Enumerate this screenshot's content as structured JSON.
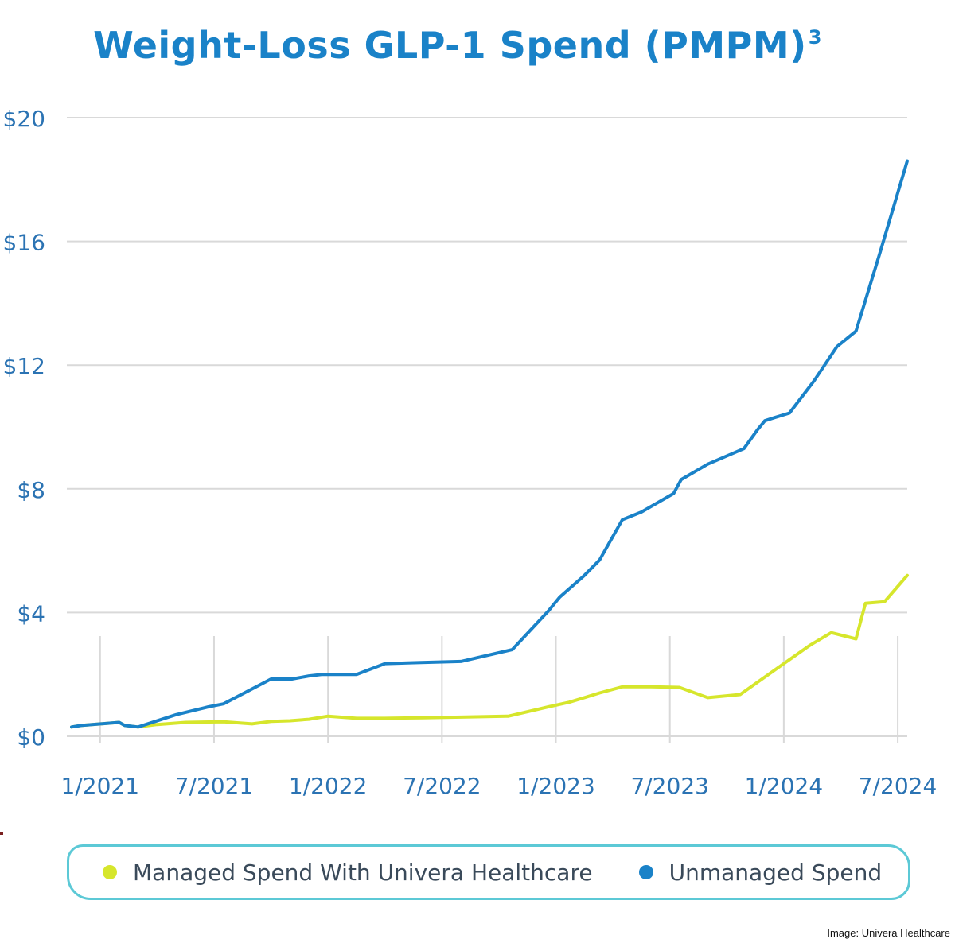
{
  "title": {
    "text": "Weight-Loss GLP-1 Spend (PMPM)",
    "superscript": "3"
  },
  "credit": "Image: Univera Healthcare",
  "colors": {
    "title": "#1a82c8",
    "unmanaged": "#1a82c8",
    "managed": "#d6e62c",
    "grid": "#d9d9d9",
    "tick": "#2b73b3",
    "legend_border": "#5cc9d6"
  },
  "legend": {
    "managed_label": "Managed Spend With Univera Healthcare",
    "unmanaged_label": "Unmanaged Spend"
  },
  "chart_data": {
    "type": "line",
    "title": "Weight-Loss GLP-1 Spend (PMPM)",
    "xlabel": "",
    "ylabel": "",
    "xlim": [
      -0.5,
      43.5
    ],
    "ylim": [
      0,
      20
    ],
    "y_ticks": [
      0,
      4,
      8,
      12,
      16,
      20
    ],
    "y_tick_labels": [
      "$0",
      "$4",
      "$8",
      "$12",
      "$16",
      "$20"
    ],
    "x_ticks": [
      1,
      7,
      13,
      19,
      25,
      31,
      37,
      43
    ],
    "x_tick_labels": [
      "1/2021",
      "7/2021",
      "1/2022",
      "7/2022",
      "1/2023",
      "7/2023",
      "1/2024",
      "7/2024"
    ],
    "grid": true,
    "legend_position": "bottom",
    "series": [
      {
        "name": "Unmanaged Spend",
        "x": [
          -0.5,
          0,
          2,
          2.3,
          3,
          5,
          6.7,
          7.5,
          10,
          11.1,
          12,
          12.7,
          14.5,
          16,
          17.7,
          20,
          22.7,
          24.6,
          25.2,
          26.5,
          27.3,
          28.5,
          29.5,
          31.2,
          31.6,
          33,
          34.9,
          35.6,
          36,
          36.5,
          37.3,
          38.6,
          39.8,
          40.8,
          42,
          43.5
        ],
        "values": [
          0.3,
          0.35,
          0.45,
          0.35,
          0.3,
          0.7,
          0.95,
          1.05,
          1.85,
          1.85,
          1.95,
          2.0,
          2.0,
          2.35,
          2.38,
          2.42,
          2.8,
          4.05,
          4.5,
          5.2,
          5.7,
          7.0,
          7.25,
          7.85,
          8.3,
          8.8,
          9.3,
          9.9,
          10.2,
          10.3,
          10.45,
          11.5,
          12.6,
          13.1,
          15.5,
          18.6
        ]
      },
      {
        "name": "Managed Spend With Univera Healthcare",
        "x": [
          -0.5,
          0,
          2,
          2.3,
          3,
          4,
          5.5,
          7.5,
          9,
          10,
          11,
          12,
          13,
          14.5,
          16,
          18,
          20,
          22.5,
          24.6,
          25.7,
          26.5,
          27.3,
          28.5,
          30,
          31.5,
          33,
          34.7,
          37,
          38.4,
          39.5,
          40.8,
          41.3,
          42.3,
          43.5
        ],
        "values": [
          0.3,
          0.35,
          0.45,
          0.35,
          0.3,
          0.38,
          0.45,
          0.47,
          0.4,
          0.48,
          0.5,
          0.55,
          0.65,
          0.58,
          0.58,
          0.6,
          0.62,
          0.65,
          0.95,
          1.1,
          1.25,
          1.4,
          1.6,
          1.6,
          1.58,
          1.25,
          1.35,
          2.35,
          2.95,
          3.35,
          3.15,
          4.3,
          4.35,
          5.2
        ]
      }
    ]
  }
}
